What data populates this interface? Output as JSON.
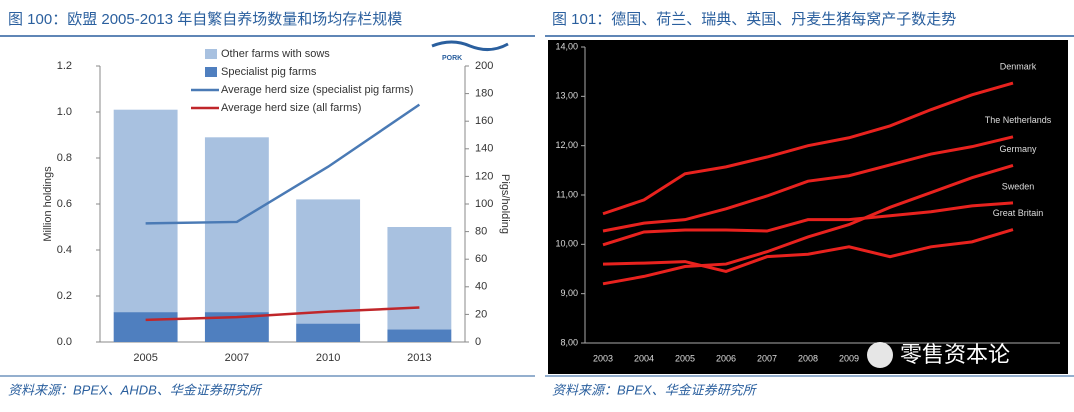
{
  "chart_data": [
    {
      "type": "bar",
      "title": "图 100：欧盟 2005-2013 年自繁自养场数量和场均存栏规模",
      "logo_text": "PORK",
      "categories": [
        "2005",
        "2007",
        "2010",
        "2013"
      ],
      "y_label": "Million holdings",
      "y2_label": "Pigs/holding",
      "series": [
        {
          "name": "Other farms with sows",
          "type": "bar",
          "color": "#a8c1e0",
          "values": [
            0.88,
            0.76,
            0.54,
            0.445
          ]
        },
        {
          "name": "Specialist pig farms",
          "type": "bar",
          "color": "#4f7fbf",
          "values": [
            0.13,
            0.13,
            0.08,
            0.055
          ]
        },
        {
          "name": "Average herd size (specialist pig farms)",
          "type": "line",
          "axis": "y2",
          "color": "#4a7ab5",
          "values": [
            86,
            87,
            127,
            172
          ]
        },
        {
          "name": "Average herd size (all farms)",
          "type": "line",
          "axis": "y2",
          "color": "#c0262a",
          "values": [
            16,
            18,
            22,
            25
          ]
        }
      ],
      "ylim": [
        0,
        1.2
      ],
      "yticks": [
        {
          "value": 0,
          "label": "0.0"
        },
        0.2,
        0.4,
        0.6,
        0.8,
        {
          "value": 1,
          "label": "1.0"
        },
        1.2
      ],
      "y2lim": [
        0,
        200
      ],
      "y2ticks": [
        0,
        20,
        40,
        60,
        80,
        100,
        120,
        140,
        160,
        180,
        200
      ],
      "source": "资料来源：BPEX、AHDB、华金证券研究所"
    },
    {
      "type": "line",
      "title": "图 101：德国、荷兰、瑞典、英国、丹麦生猪每窝产子数走势",
      "categories": [
        "2003",
        "2004",
        "2005",
        "2006",
        "2007",
        "2008",
        "2009",
        null,
        null,
        null,
        null
      ],
      "series": [
        {
          "name": "Denmark",
          "color": "#e8221e",
          "values": [
            10.62,
            10.9,
            11.43,
            11.57,
            11.77,
            12.0,
            12.16,
            12.4,
            12.73,
            13.03,
            13.27
          ]
        },
        {
          "name": "The Netherlands",
          "color": "#e8221e",
          "values": [
            10.27,
            10.43,
            10.5,
            10.72,
            10.98,
            11.28,
            11.39,
            11.61,
            11.83,
            11.98,
            12.18
          ]
        },
        {
          "name": "Germany",
          "color": "#e8221e",
          "values": [
            9.2,
            9.35,
            9.55,
            9.6,
            9.85,
            10.15,
            10.4,
            10.75,
            11.05,
            11.35,
            11.6
          ]
        },
        {
          "name": "Sweden",
          "color": "#e8221e",
          "values": [
            9.99,
            10.25,
            10.29,
            10.29,
            10.27,
            10.5,
            10.5,
            10.58,
            10.66,
            10.78,
            10.84
          ]
        },
        {
          "name": "Great Britain",
          "color": "#e8221e",
          "values": [
            9.6,
            9.62,
            9.65,
            9.45,
            9.75,
            9.8,
            9.95,
            9.75,
            9.95,
            10.05,
            10.3
          ]
        }
      ],
      "ylim": [
        8,
        14
      ],
      "yticks": [
        {
          "value": 8,
          "label": "8,00"
        },
        {
          "value": 9,
          "label": "9,00"
        },
        {
          "value": 10,
          "label": "10,00"
        },
        {
          "value": 11,
          "label": "11,00"
        },
        {
          "value": 12,
          "label": "12,00"
        },
        {
          "value": 13,
          "label": "13,00"
        },
        {
          "value": 14,
          "label": "14,00"
        }
      ],
      "watermark": "零售资本论",
      "source": "资料来源：BPEX、华金证券研究所"
    }
  ]
}
